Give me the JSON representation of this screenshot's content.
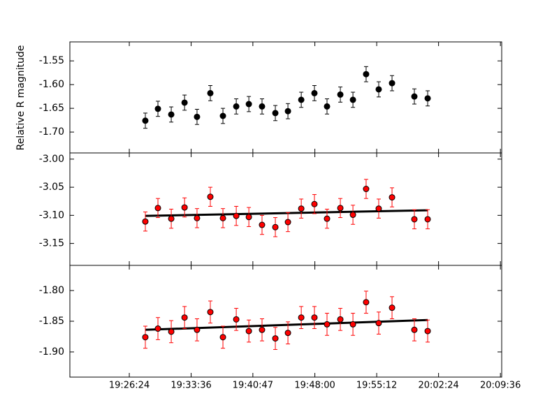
{
  "chart_data": [
    {
      "type": "scatter",
      "ylabel": "Relative R magnitude",
      "x": [
        "19:28:16",
        "19:29:44",
        "19:31:17",
        "19:32:50",
        "19:34:17",
        "19:35:50",
        "19:37:18",
        "19:38:51",
        "19:40:19",
        "19:41:51",
        "19:43:24",
        "19:44:52",
        "19:46:25",
        "19:47:57",
        "19:49:25",
        "19:50:58",
        "19:52:26",
        "19:53:58",
        "19:55:26",
        "19:56:59",
        "19:59:35",
        "20:01:08"
      ],
      "xlim": [
        "19:19:29",
        "20:09:45"
      ],
      "series": [
        {
          "color": "#000000",
          "error_color": "#000000",
          "values": [
            -1.676,
            -1.651,
            -1.663,
            -1.638,
            -1.668,
            -1.618,
            -1.666,
            -1.646,
            -1.641,
            -1.646,
            -1.66,
            -1.656,
            -1.632,
            -1.618,
            -1.646,
            -1.621,
            -1.632,
            -1.578,
            -1.61,
            -1.597,
            -1.625,
            -1.629
          ],
          "errors": [
            0.016,
            0.016,
            0.016,
            0.016,
            0.016,
            0.016,
            0.016,
            0.016,
            0.016,
            0.016,
            0.016,
            0.016,
            0.016,
            0.016,
            0.016,
            0.016,
            0.016,
            0.016,
            0.016,
            0.016,
            0.016,
            0.016
          ]
        }
      ],
      "ylim": [
        -1.744,
        -1.51
      ],
      "yticks": [
        -1.55,
        {
          "value": -1.6,
          "label": "-1.60"
        },
        -1.65,
        {
          "value": -1.7,
          "label": "-1.70"
        }
      ]
    },
    {
      "type": "scatter",
      "x": [
        "19:28:16",
        "19:29:44",
        "19:31:17",
        "19:32:50",
        "19:34:17",
        "19:35:50",
        "19:37:18",
        "19:38:51",
        "19:40:19",
        "19:41:51",
        "19:43:24",
        "19:44:52",
        "19:46:25",
        "19:47:57",
        "19:49:25",
        "19:50:58",
        "19:52:26",
        "19:53:58",
        "19:55:26",
        "19:56:59",
        "19:59:35",
        "20:01:08"
      ],
      "xlim": [
        "19:19:29",
        "20:09:45"
      ],
      "series": [
        {
          "color": "#ff0000",
          "error_color": "#ff0000",
          "values": [
            -3.111,
            -3.087,
            -3.106,
            -3.086,
            -3.105,
            -3.067,
            -3.105,
            -3.101,
            -3.103,
            -3.117,
            -3.121,
            -3.112,
            -3.088,
            -3.08,
            -3.106,
            -3.087,
            -3.099,
            -3.053,
            -3.088,
            -3.068,
            -3.107,
            -3.107
          ],
          "errors": [
            0.017,
            0.017,
            0.017,
            0.017,
            0.017,
            0.017,
            0.017,
            0.017,
            0.017,
            0.017,
            0.017,
            0.017,
            0.017,
            0.017,
            0.017,
            0.017,
            0.017,
            0.017,
            0.017,
            0.017,
            0.017,
            0.017
          ]
        }
      ],
      "fit": {
        "color": "#000000",
        "x": [
          "19:28:16",
          "20:01:08"
        ],
        "values": [
          -3.101,
          -3.091
        ]
      },
      "ylim": [
        -3.189,
        -2.989
      ],
      "yticks": [
        {
          "value": -3,
          "label": "-3.00"
        },
        -3.05,
        {
          "value": -3.1,
          "label": "-3.10"
        },
        -3.15
      ]
    },
    {
      "type": "scatter",
      "x": [
        "19:28:16",
        "19:29:44",
        "19:31:17",
        "19:32:50",
        "19:34:17",
        "19:35:50",
        "19:37:18",
        "19:38:51",
        "19:40:19",
        "19:41:51",
        "19:43:24",
        "19:44:52",
        "19:46:25",
        "19:47:57",
        "19:49:25",
        "19:50:58",
        "19:52:26",
        "19:53:58",
        "19:55:26",
        "19:56:59",
        "19:59:35",
        "20:01:08"
      ],
      "xlim": [
        "19:19:29",
        "20:09:45"
      ],
      "xticks": [
        "19:26:24",
        "19:33:36",
        "19:40:47",
        "19:48:00",
        "19:55:12",
        "20:02:24",
        "20:09:36"
      ],
      "series": [
        {
          "color": "#ff0000",
          "error_color": "#ff0000",
          "values": [
            -1.876,
            -1.862,
            -1.867,
            -1.844,
            -1.864,
            -1.835,
            -1.876,
            -1.847,
            -1.866,
            -1.864,
            -1.878,
            -1.869,
            -1.844,
            -1.844,
            -1.855,
            -1.847,
            -1.855,
            -1.819,
            -1.853,
            -1.828,
            -1.864,
            -1.866
          ],
          "errors": [
            0.018,
            0.018,
            0.018,
            0.018,
            0.018,
            0.018,
            0.018,
            0.018,
            0.018,
            0.018,
            0.018,
            0.018,
            0.018,
            0.018,
            0.018,
            0.018,
            0.018,
            0.018,
            0.018,
            0.018,
            0.018,
            0.018
          ]
        }
      ],
      "fit": {
        "color": "#000000",
        "x": [
          "19:28:16",
          "20:01:08"
        ],
        "values": [
          -1.864,
          -1.848
        ]
      },
      "ylim": [
        -1.941,
        -1.759
      ],
      "yticks": [
        {
          "value": -1.8,
          "label": "-1.80"
        },
        -1.85,
        {
          "value": -1.9,
          "label": "-1.90"
        }
      ]
    }
  ]
}
